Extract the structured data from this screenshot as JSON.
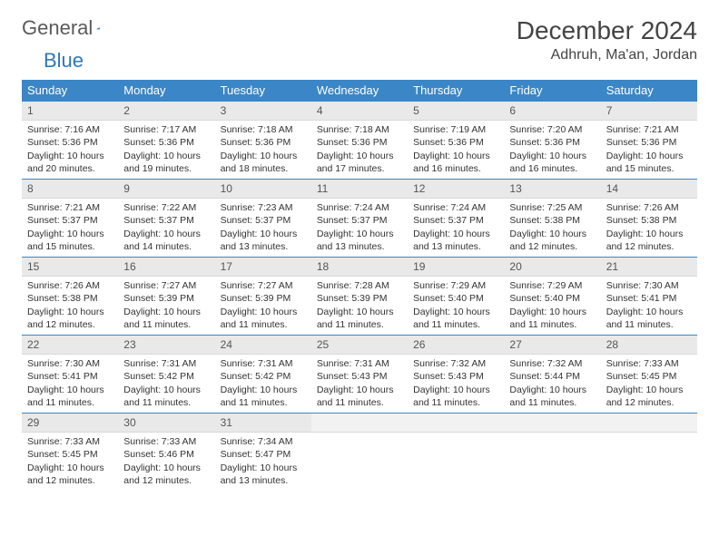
{
  "brand": {
    "text_a": "General",
    "text_b": "Blue",
    "triangle_color": "#2f77b5"
  },
  "title": "December 2024",
  "location": "Adhruh, Ma'an, Jordan",
  "colors": {
    "header_bg": "#3b86c6",
    "daynum_bg": "#e9e9e9",
    "rule": "#3b86c6"
  },
  "weekdays": [
    "Sunday",
    "Monday",
    "Tuesday",
    "Wednesday",
    "Thursday",
    "Friday",
    "Saturday"
  ],
  "days": [
    {
      "n": 1,
      "sr": "7:16 AM",
      "ss": "5:36 PM",
      "dl": "10 hours and 20 minutes."
    },
    {
      "n": 2,
      "sr": "7:17 AM",
      "ss": "5:36 PM",
      "dl": "10 hours and 19 minutes."
    },
    {
      "n": 3,
      "sr": "7:18 AM",
      "ss": "5:36 PM",
      "dl": "10 hours and 18 minutes."
    },
    {
      "n": 4,
      "sr": "7:18 AM",
      "ss": "5:36 PM",
      "dl": "10 hours and 17 minutes."
    },
    {
      "n": 5,
      "sr": "7:19 AM",
      "ss": "5:36 PM",
      "dl": "10 hours and 16 minutes."
    },
    {
      "n": 6,
      "sr": "7:20 AM",
      "ss": "5:36 PM",
      "dl": "10 hours and 16 minutes."
    },
    {
      "n": 7,
      "sr": "7:21 AM",
      "ss": "5:36 PM",
      "dl": "10 hours and 15 minutes."
    },
    {
      "n": 8,
      "sr": "7:21 AM",
      "ss": "5:37 PM",
      "dl": "10 hours and 15 minutes."
    },
    {
      "n": 9,
      "sr": "7:22 AM",
      "ss": "5:37 PM",
      "dl": "10 hours and 14 minutes."
    },
    {
      "n": 10,
      "sr": "7:23 AM",
      "ss": "5:37 PM",
      "dl": "10 hours and 13 minutes."
    },
    {
      "n": 11,
      "sr": "7:24 AM",
      "ss": "5:37 PM",
      "dl": "10 hours and 13 minutes."
    },
    {
      "n": 12,
      "sr": "7:24 AM",
      "ss": "5:37 PM",
      "dl": "10 hours and 13 minutes."
    },
    {
      "n": 13,
      "sr": "7:25 AM",
      "ss": "5:38 PM",
      "dl": "10 hours and 12 minutes."
    },
    {
      "n": 14,
      "sr": "7:26 AM",
      "ss": "5:38 PM",
      "dl": "10 hours and 12 minutes."
    },
    {
      "n": 15,
      "sr": "7:26 AM",
      "ss": "5:38 PM",
      "dl": "10 hours and 12 minutes."
    },
    {
      "n": 16,
      "sr": "7:27 AM",
      "ss": "5:39 PM",
      "dl": "10 hours and 11 minutes."
    },
    {
      "n": 17,
      "sr": "7:27 AM",
      "ss": "5:39 PM",
      "dl": "10 hours and 11 minutes."
    },
    {
      "n": 18,
      "sr": "7:28 AM",
      "ss": "5:39 PM",
      "dl": "10 hours and 11 minutes."
    },
    {
      "n": 19,
      "sr": "7:29 AM",
      "ss": "5:40 PM",
      "dl": "10 hours and 11 minutes."
    },
    {
      "n": 20,
      "sr": "7:29 AM",
      "ss": "5:40 PM",
      "dl": "10 hours and 11 minutes."
    },
    {
      "n": 21,
      "sr": "7:30 AM",
      "ss": "5:41 PM",
      "dl": "10 hours and 11 minutes."
    },
    {
      "n": 22,
      "sr": "7:30 AM",
      "ss": "5:41 PM",
      "dl": "10 hours and 11 minutes."
    },
    {
      "n": 23,
      "sr": "7:31 AM",
      "ss": "5:42 PM",
      "dl": "10 hours and 11 minutes."
    },
    {
      "n": 24,
      "sr": "7:31 AM",
      "ss": "5:42 PM",
      "dl": "10 hours and 11 minutes."
    },
    {
      "n": 25,
      "sr": "7:31 AM",
      "ss": "5:43 PM",
      "dl": "10 hours and 11 minutes."
    },
    {
      "n": 26,
      "sr": "7:32 AM",
      "ss": "5:43 PM",
      "dl": "10 hours and 11 minutes."
    },
    {
      "n": 27,
      "sr": "7:32 AM",
      "ss": "5:44 PM",
      "dl": "10 hours and 11 minutes."
    },
    {
      "n": 28,
      "sr": "7:33 AM",
      "ss": "5:45 PM",
      "dl": "10 hours and 12 minutes."
    },
    {
      "n": 29,
      "sr": "7:33 AM",
      "ss": "5:45 PM",
      "dl": "10 hours and 12 minutes."
    },
    {
      "n": 30,
      "sr": "7:33 AM",
      "ss": "5:46 PM",
      "dl": "10 hours and 12 minutes."
    },
    {
      "n": 31,
      "sr": "7:34 AM",
      "ss": "5:47 PM",
      "dl": "10 hours and 13 minutes."
    }
  ],
  "labels": {
    "sunrise": "Sunrise:",
    "sunset": "Sunset:",
    "daylight": "Daylight:"
  },
  "start_weekday": 0,
  "total_cells": 35
}
